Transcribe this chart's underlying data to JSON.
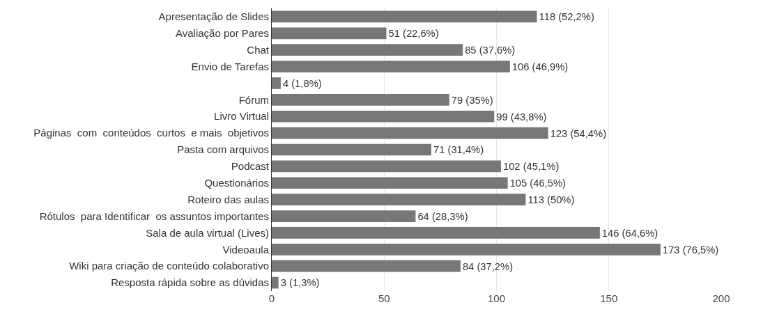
{
  "chart_data": {
    "type": "bar",
    "orientation": "horizontal",
    "categories": [
      "Apresentação de Slides",
      "Avaliação por Pares",
      "Chat",
      "Envio de Tarefas",
      null,
      "Fórum",
      "Livro Virtual",
      "Páginas  com  conteúdos  curtos  e mais  objetivos",
      "Pasta com arquivos",
      "Podcast",
      "Questionários",
      "Roteiro das aulas",
      "Rótulos  para Identificar  os assuntos importantes",
      "Sala de aula virtual (Lives)",
      "Videoaula",
      "Wiki para criação de conteúdo colaborativo",
      "Resposta rápida sobre as dúvidas"
    ],
    "values": [
      118,
      51,
      85,
      106,
      4,
      79,
      99,
      123,
      71,
      102,
      105,
      113,
      64,
      146,
      173,
      84,
      3
    ],
    "value_labels": [
      "118 (52,2%)",
      "51 (22,6%)",
      "85 (37,6%)",
      "106 (46,9%)",
      "4 (1,8%)",
      "79 (35%)",
      "99 (43,8%)",
      "123 (54,4%)",
      "71 (31,4%)",
      "102 (45,1%)",
      "105 (46,5%)",
      "113 (50%)",
      "64 (28,3%)",
      "146 (64,6%)",
      "173 (76,5%)",
      "84 (37,2%)",
      "3 (1,3%)"
    ],
    "color": "#777777",
    "xlim": [
      0,
      200
    ],
    "xticks": [
      0,
      50,
      100,
      150,
      200
    ],
    "grid": "x",
    "legend": false
  }
}
